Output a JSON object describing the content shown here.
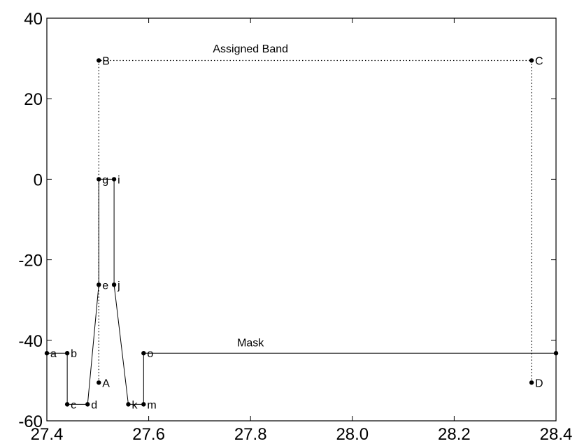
{
  "chart_data": {
    "type": "line",
    "title": "",
    "xlabel": "",
    "ylabel": "",
    "xlim": [
      27.4,
      28.4
    ],
    "ylim": [
      -60,
      40
    ],
    "xticks": [
      "27.4",
      "27.6",
      "27.8",
      "28.0",
      "28.2",
      "28.4"
    ],
    "yticks": [
      "40",
      "20",
      "0",
      "-20",
      "-40",
      "-60"
    ],
    "grid": false,
    "legend": "none",
    "annotations": [
      {
        "text": "Assigned Band",
        "x": 27.8,
        "y": 31.5
      },
      {
        "text": "Mask",
        "x": 27.8,
        "y": -41.5
      }
    ],
    "series": [
      {
        "style": "solid",
        "points": [
          {
            "label": "a",
            "x": 27.4,
            "y": -43.2
          },
          {
            "label": "b",
            "x": 27.44,
            "y": -43.2
          },
          {
            "label": "c",
            "x": 27.44,
            "y": -55.9
          },
          {
            "label": "d",
            "x": 27.48,
            "y": -55.9
          },
          {
            "label": "e",
            "x": 27.502,
            "y": -26.2
          },
          {
            "label": "g",
            "x": 27.502,
            "y": 0
          },
          {
            "label": "i",
            "x": 27.532,
            "y": 0
          },
          {
            "label": "j",
            "x": 27.532,
            "y": -26.2
          },
          {
            "label": "k",
            "x": 27.56,
            "y": -55.9
          },
          {
            "label": "m",
            "x": 27.59,
            "y": -55.9
          },
          {
            "label": "o",
            "x": 27.59,
            "y": -43.2
          },
          {
            "label": "",
            "x": 28.4,
            "y": -43.2
          }
        ]
      },
      {
        "style": "dotted",
        "points": [
          {
            "label": "A",
            "x": 27.502,
            "y": -50.5
          },
          {
            "label": "B",
            "x": 27.502,
            "y": 29.5
          },
          {
            "label": "C",
            "x": 28.352,
            "y": 29.5
          },
          {
            "label": "D",
            "x": 28.352,
            "y": -50.5
          }
        ]
      }
    ]
  }
}
